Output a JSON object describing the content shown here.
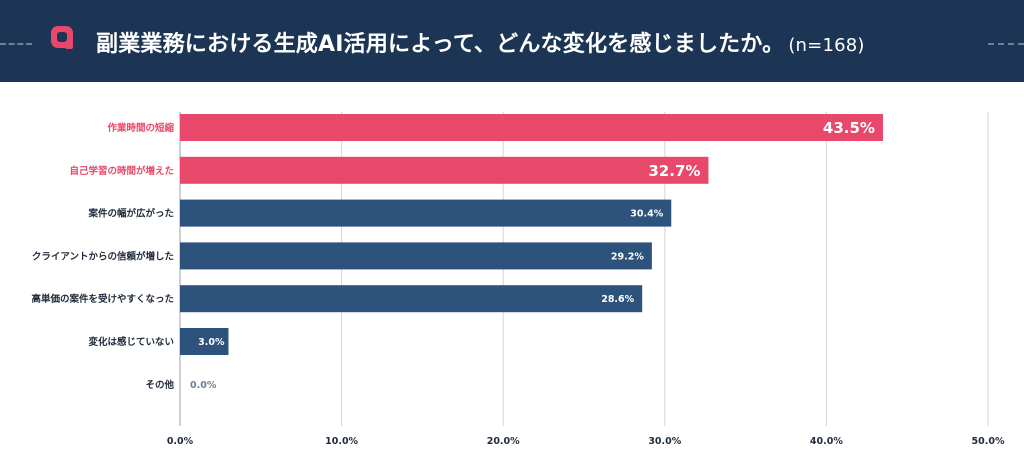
{
  "header": {
    "question_mark": "Q",
    "title": "副業業務における生成AI活用によって、どんな変化を感じましたか。",
    "sample": "(n=168)"
  },
  "colors": {
    "header_bg": "#1c3554",
    "highlight": "#e8496a",
    "bar": "#2d527c",
    "grid": "#d5d5d5",
    "axis_text": "#1f2a3a"
  },
  "chart_data": {
    "type": "bar",
    "orientation": "horizontal",
    "categories": [
      "作業時間の短縮",
      "自己学習の時間が増えた",
      "案件の幅が広がった",
      "クライアントからの信頼が増した",
      "高単価の案件を受けやすくなった",
      "変化は感じていない",
      "その他"
    ],
    "values": [
      43.5,
      32.7,
      30.4,
      29.2,
      28.6,
      3.0,
      0.0
    ],
    "value_labels": [
      "43.5%",
      "32.7%",
      "30.4%",
      "29.2%",
      "28.6%",
      "3.0%",
      "0.0%"
    ],
    "highlighted": [
      true,
      true,
      false,
      false,
      false,
      false,
      false
    ],
    "xlim": [
      0,
      50
    ],
    "x_ticks": [
      "0.0%",
      "10.0%",
      "20.0%",
      "30.0%",
      "40.0%",
      "50.0%"
    ],
    "grid": true
  }
}
